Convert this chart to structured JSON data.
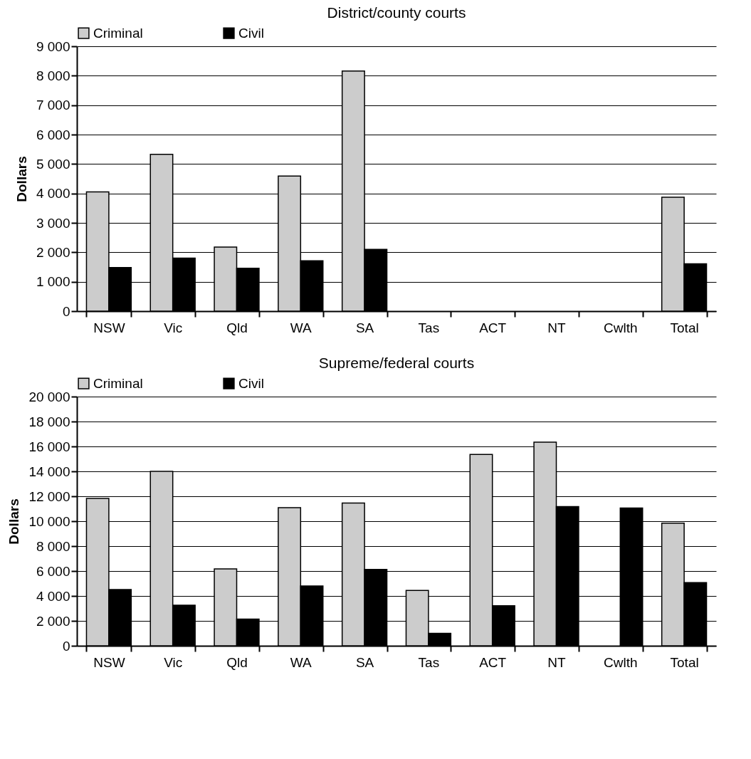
{
  "chart_data": [
    {
      "type": "bar",
      "title": "District/county courts",
      "ylabel": "Dollars",
      "legend": "top",
      "grid": "y",
      "categories": [
        "NSW",
        "Vic",
        "Qld",
        "WA",
        "SA",
        "Tas",
        "ACT",
        "NT",
        "Cwlth",
        "Total"
      ],
      "series": [
        {
          "name": "Criminal",
          "color": "#cccccc",
          "values": [
            4050,
            5330,
            2180,
            4590,
            8160,
            null,
            null,
            null,
            null,
            3870
          ]
        },
        {
          "name": "Civil",
          "color": "#000000",
          "values": [
            1480,
            1800,
            1460,
            1710,
            2100,
            null,
            null,
            null,
            null,
            1610
          ]
        }
      ],
      "ylim": [
        0,
        9000
      ],
      "yticks": [
        0,
        {
          "value": 1000,
          "label": "1 000"
        },
        {
          "value": 2000,
          "label": "2 000"
        },
        {
          "value": 3000,
          "label": "3 000"
        },
        {
          "value": 4000,
          "label": "4 000"
        },
        {
          "value": 5000,
          "label": "5 000"
        },
        {
          "value": 6000,
          "label": "6 000"
        },
        {
          "value": 7000,
          "label": "7 000"
        },
        {
          "value": 8000,
          "label": "8 000"
        },
        {
          "value": 9000,
          "label": "9 000"
        }
      ]
    },
    {
      "type": "bar",
      "title": "Supreme/federal courts",
      "ylabel": "Dollars",
      "legend": "top",
      "grid": "y",
      "categories": [
        "NSW",
        "Vic",
        "Qld",
        "WA",
        "SA",
        "Tas",
        "ACT",
        "NT",
        "Cwlth",
        "Total"
      ],
      "series": [
        {
          "name": "Criminal",
          "color": "#cccccc",
          "values": [
            11830,
            14000,
            6170,
            11090,
            11460,
            4450,
            15360,
            16340,
            null,
            9850
          ]
        },
        {
          "name": "Civil",
          "color": "#000000",
          "values": [
            4520,
            3260,
            2150,
            4800,
            6130,
            1000,
            3210,
            11170,
            11060,
            5070
          ]
        }
      ],
      "ylim": [
        0,
        20000
      ],
      "yticks": [
        0,
        {
          "value": 2000,
          "label": "2 000"
        },
        {
          "value": 4000,
          "label": "4 000"
        },
        {
          "value": 6000,
          "label": "6 000"
        },
        {
          "value": 8000,
          "label": "8 000"
        },
        {
          "value": 10000,
          "label": "10 000"
        },
        {
          "value": 12000,
          "label": "12 000"
        },
        {
          "value": 14000,
          "label": "14 000"
        },
        {
          "value": 16000,
          "label": "16 000"
        },
        {
          "value": 18000,
          "label": "18 000"
        },
        {
          "value": 20000,
          "label": "20 000"
        }
      ]
    }
  ]
}
